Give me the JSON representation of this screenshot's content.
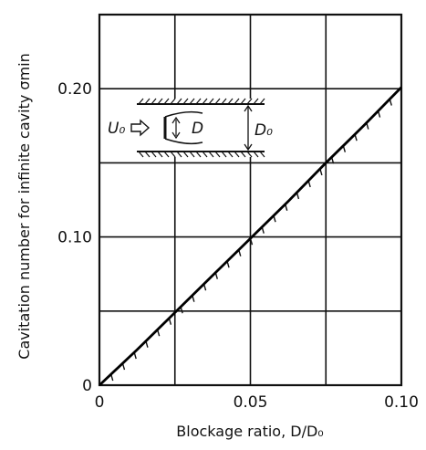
{
  "chart_data": {
    "type": "line",
    "title": "",
    "xlabel": "Blockage ratio, D/D₀",
    "ylabel": "Cavitation number for infinite cavity σmin",
    "xlim": [
      0,
      0.1
    ],
    "ylim": [
      0,
      0.25
    ],
    "x_ticks": [
      0,
      0.05,
      0.1
    ],
    "x_tick_labels": [
      "0",
      "0.05",
      "0.10"
    ],
    "y_ticks": [
      0,
      0.1,
      0.2
    ],
    "y_tick_labels": [
      "0",
      "0.10",
      "0.20"
    ],
    "grid": true,
    "series": [
      {
        "x": [
          0,
          0.0125,
          0.025,
          0.0375,
          0.05,
          0.0625,
          0.075,
          0.0875,
          0.1
        ],
        "y": [
          0,
          0.024,
          0.049,
          0.074,
          0.099,
          0.124,
          0.15,
          0.175,
          0.201
        ]
      }
    ],
    "inset": {
      "labels": [
        "U₀",
        "D",
        "D₀"
      ]
    }
  }
}
